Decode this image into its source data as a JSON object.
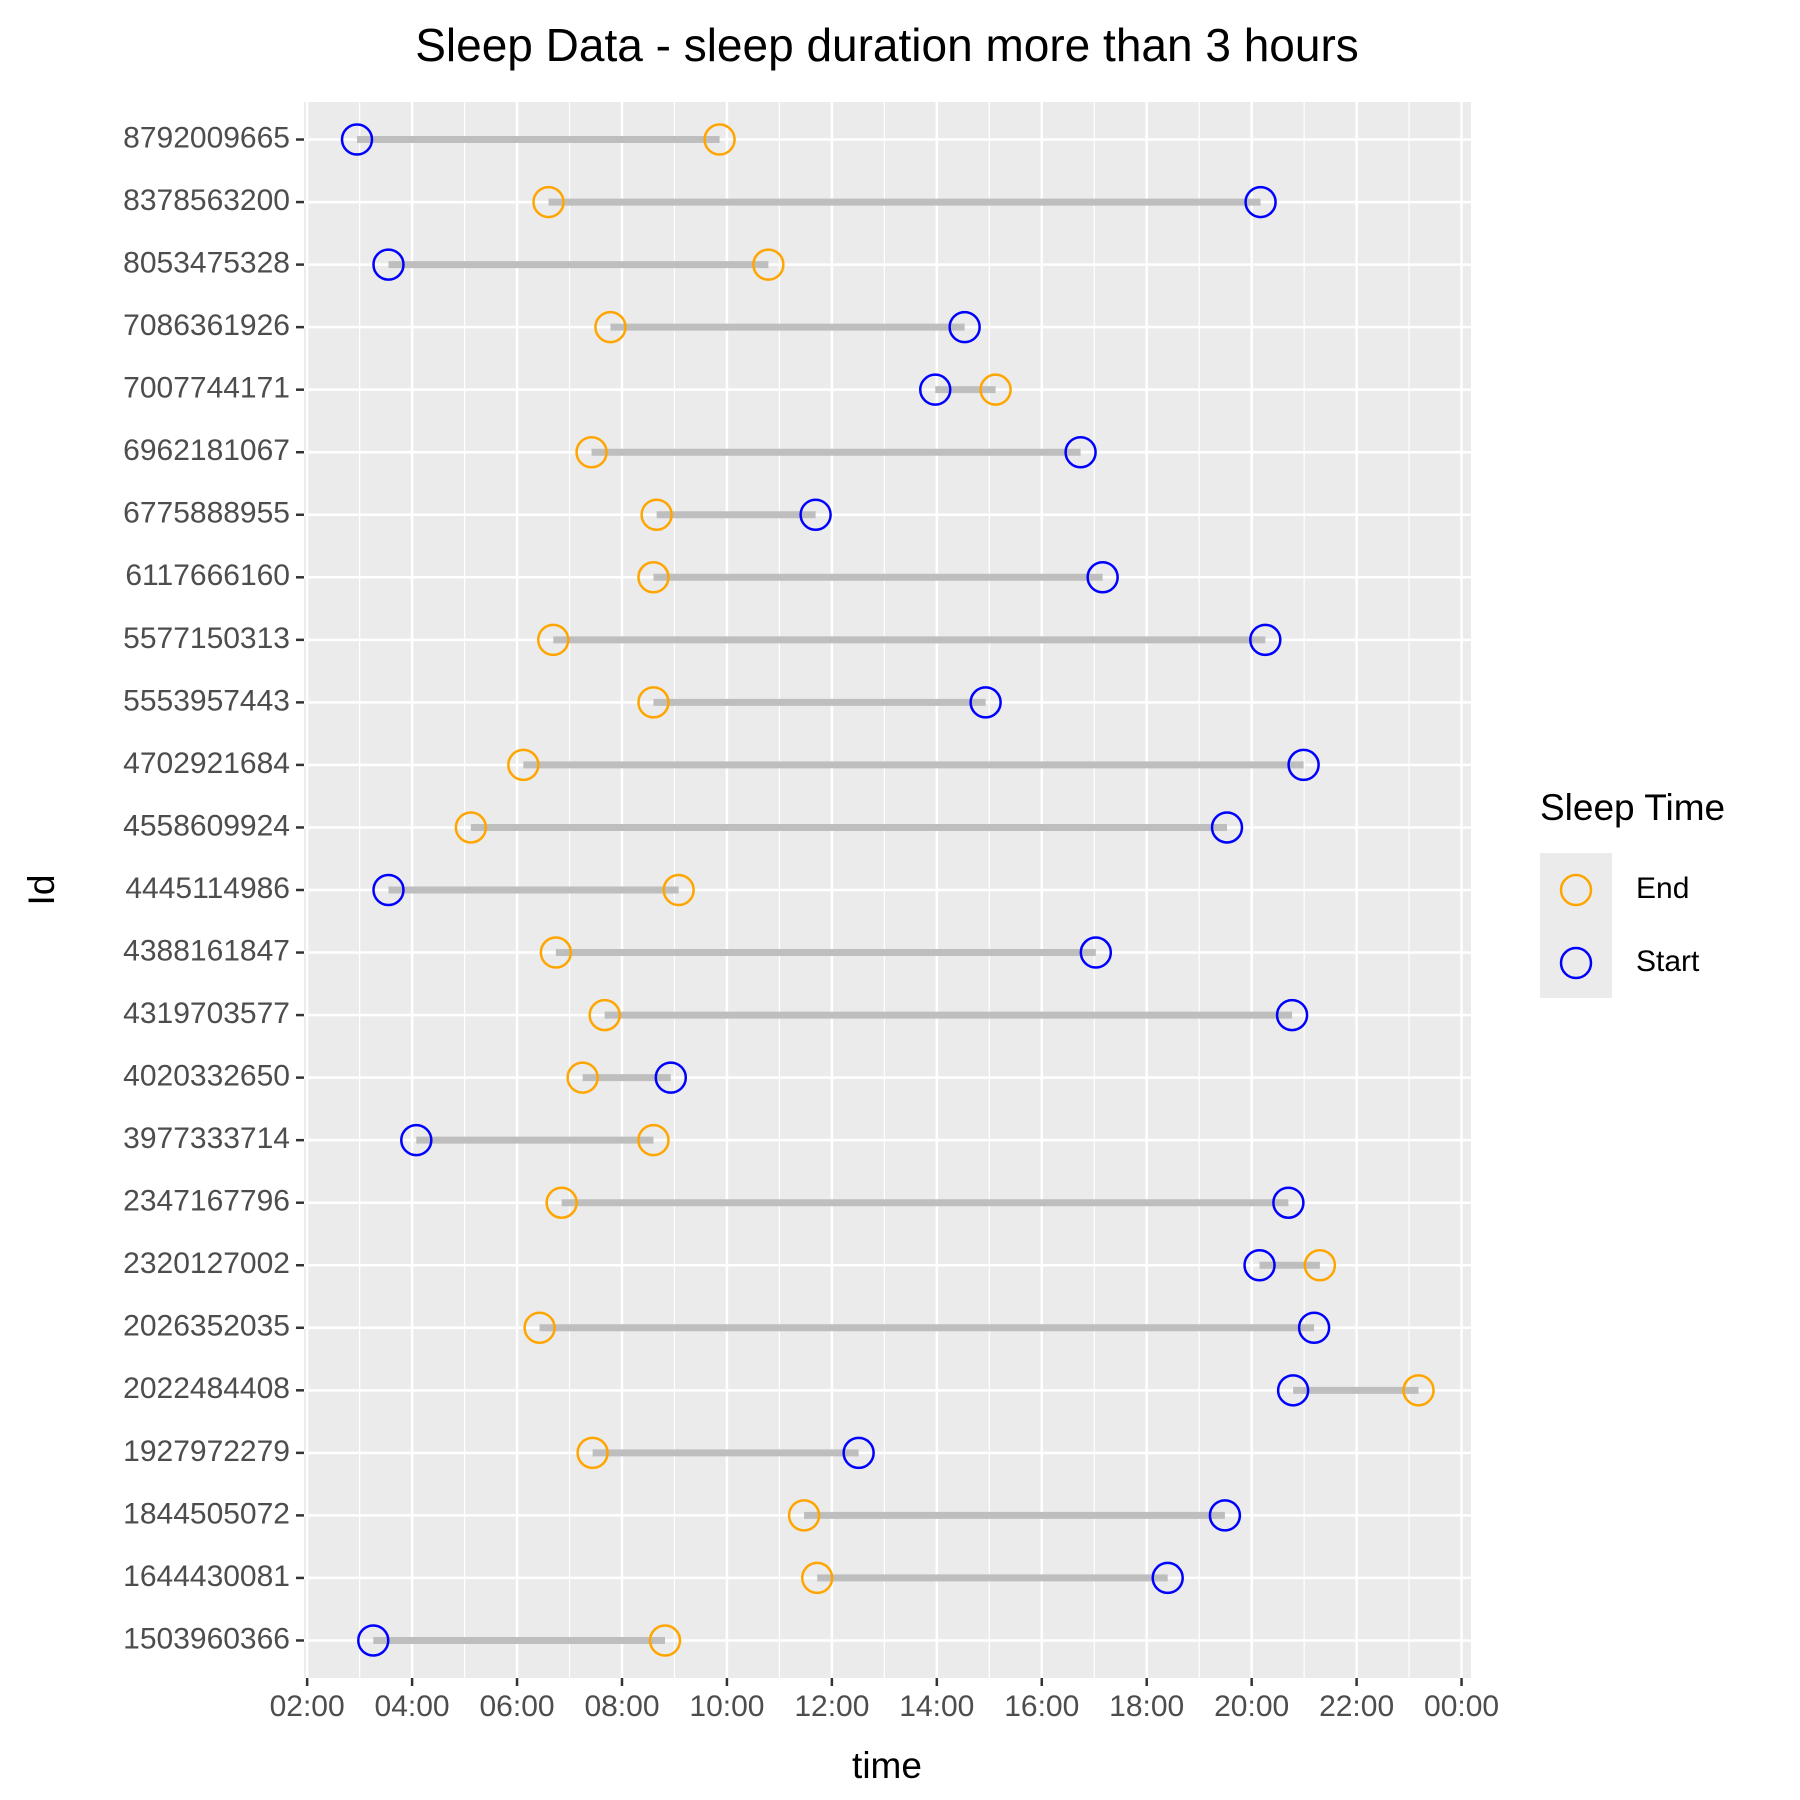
{
  "chart_data": {
    "type": "dumbbell",
    "title": "Sleep Data - sleep duration more than 3 hours",
    "x_label": "time",
    "y_label": "Id",
    "categories": [
      "8792009665",
      "8378563200",
      "8053475328",
      "7086361926",
      "7007744171",
      "6962181067",
      "6775888955",
      "6117666160",
      "5577150313",
      "5553957443",
      "4702921684",
      "4558609924",
      "4445114986",
      "4388161847",
      "4319703577",
      "4020332650",
      "3977333714",
      "2347167796",
      "2320127002",
      "2026352035",
      "2022484408",
      "1927972279",
      "1844505072",
      "1644430081",
      "1503960366"
    ],
    "series": [
      {
        "name": "End",
        "color": "#ffa500",
        "values": [
          9.86,
          6.6,
          10.79,
          7.78,
          15.12,
          7.42,
          8.66,
          8.6,
          6.69,
          8.6,
          6.12,
          5.12,
          9.08,
          6.74,
          7.67,
          7.25,
          8.6,
          6.85,
          21.3,
          6.43,
          23.18,
          7.44,
          11.47,
          11.72,
          8.82
        ]
      },
      {
        "name": "Start",
        "color": "#0000ff",
        "values": [
          2.95,
          20.17,
          3.55,
          14.53,
          13.97,
          16.74,
          11.69,
          17.16,
          20.26,
          14.93,
          20.99,
          19.53,
          3.55,
          17.03,
          20.77,
          8.93,
          4.08,
          20.7,
          20.15,
          21.19,
          20.79,
          12.51,
          19.49,
          18.4,
          3.26
        ]
      }
    ],
    "segment_color": "#bebebe",
    "xlim": [
      1.94,
      24.18
    ],
    "xticks": [
      {
        "value": 2,
        "label": "02:00"
      },
      {
        "value": 4,
        "label": "04:00"
      },
      {
        "value": 6,
        "label": "06:00"
      },
      {
        "value": 8,
        "label": "08:00"
      },
      {
        "value": 10,
        "label": "10:00"
      },
      {
        "value": 12,
        "label": "12:00"
      },
      {
        "value": 14,
        "label": "14:00"
      },
      {
        "value": 16,
        "label": "16:00"
      },
      {
        "value": 18,
        "label": "18:00"
      },
      {
        "value": 20,
        "label": "20:00"
      },
      {
        "value": 22,
        "label": "22:00"
      },
      {
        "value": 24,
        "label": "00:00"
      }
    ],
    "grid": true,
    "legend_title": "Sleep Time",
    "legend_position": "right"
  }
}
